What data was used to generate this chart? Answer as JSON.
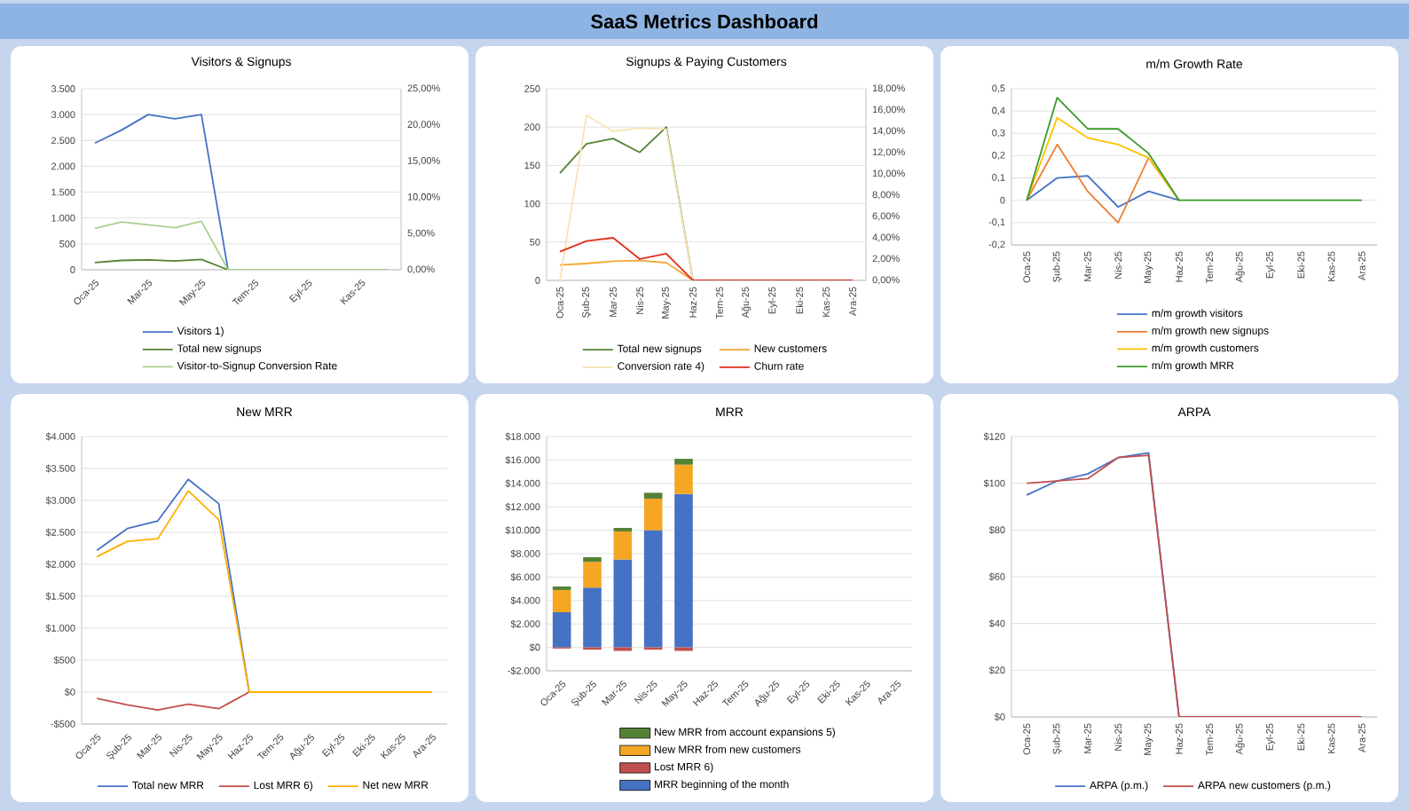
{
  "chart_data": [
    {
      "type": "other",
      "title": "SaaS Metrics Dashboard"
    },
    {
      "type": "line",
      "title": "Visitors & Signups",
      "categories": [
        "Oca-25",
        null,
        "Mar-25",
        null,
        "May-25",
        null,
        "Tem-25",
        null,
        "Eyl-25",
        null,
        "Kas-25",
        null
      ],
      "series": [
        {
          "name": "Visitors 1)",
          "color": "#4472c4",
          "values": [
            2450,
            2700,
            3000,
            2920,
            3000,
            0,
            null,
            null,
            null,
            null,
            null,
            null
          ]
        },
        {
          "name": "Total new signups",
          "color": "#548235",
          "values": [
            140,
            180,
            190,
            170,
            200,
            0,
            null,
            null,
            null,
            null,
            null,
            null
          ]
        },
        {
          "name": "Visitor-to-Signup Conversion Rate",
          "color": "#a9d18e",
          "axis": "y2",
          "values": [
            5.7,
            6.6,
            6.2,
            5.8,
            6.7,
            0,
            0,
            0,
            0,
            0,
            0,
            0
          ]
        }
      ],
      "ylim": [
        0,
        3500
      ],
      "yticks": [
        0,
        500,
        {
          "value": 1000,
          "label": "1.000"
        },
        {
          "value": 1500,
          "label": "1.500"
        },
        {
          "value": 2000,
          "label": "2.000"
        },
        {
          "value": 2500,
          "label": "2.500"
        },
        {
          "value": 3000,
          "label": "3.000"
        },
        {
          "value": 3500,
          "label": "3.500"
        }
      ],
      "y2lim": [
        0,
        25
      ],
      "y2ticks": [
        {
          "value": 0,
          "label": "0,00%"
        },
        {
          "value": 5,
          "label": "5,00%"
        },
        {
          "value": 10,
          "label": "10,00%"
        },
        {
          "value": 15,
          "label": "15,00%"
        },
        {
          "value": 20,
          "label": "20,00%"
        },
        {
          "value": 25,
          "label": "25,00%"
        }
      ],
      "grid": "y",
      "legend": "bottom"
    },
    {
      "type": "line",
      "title": "Signups & Paying Customers",
      "categories": [
        "Oca-25",
        "Şub-25",
        "Mar-25",
        "Nis-25",
        "May-25",
        "Haz-25",
        "Tem-25",
        "Ağu-25",
        "Eyl-25",
        "Eki-25",
        "Kas-25",
        "Ara-25"
      ],
      "series": [
        {
          "name": "Total new signups",
          "color": "#548235",
          "values": [
            140,
            178,
            185,
            167,
            200,
            0,
            null,
            null,
            null,
            null,
            null,
            null
          ]
        },
        {
          "name": "New customers",
          "color": "#f4a630",
          "values": [
            20,
            22,
            25,
            26,
            23,
            0,
            null,
            null,
            null,
            null,
            null,
            null
          ]
        },
        {
          "name": "Conversion rate 4)",
          "color": "#f8e3b4",
          "axis": "y2",
          "values": [
            0,
            15.5,
            14,
            14.3,
            14.2,
            0,
            null,
            null,
            null,
            null,
            null,
            null
          ]
        },
        {
          "name": "Churn rate",
          "color": "#e0301e",
          "axis": "y2",
          "values": [
            2.7,
            3.7,
            4.0,
            2.0,
            2.5,
            0,
            0,
            0,
            0,
            0,
            0,
            0
          ]
        }
      ],
      "ylim": [
        0,
        250
      ],
      "yticks": [
        0,
        50,
        100,
        150,
        200,
        250
      ],
      "y2lim": [
        0,
        18
      ],
      "y2ticks": [
        {
          "value": 0,
          "label": "0,00%"
        },
        {
          "value": 2,
          "label": "2,00%"
        },
        {
          "value": 4,
          "label": "4,00%"
        },
        {
          "value": 6,
          "label": "6,00%"
        },
        {
          "value": 8,
          "label": "8,00%"
        },
        {
          "value": 10,
          "label": "10,00%"
        },
        {
          "value": 12,
          "label": "12,00%"
        },
        {
          "value": 14,
          "label": "14,00%"
        },
        {
          "value": 16,
          "label": "16,00%"
        },
        {
          "value": 18,
          "label": "18,00%"
        }
      ],
      "grid": "y",
      "legend": "bottom"
    },
    {
      "type": "line",
      "title": "m/m Growth Rate",
      "categories": [
        "Oca-25",
        "Şub-25",
        "Mar-25",
        "Nis-25",
        "May-25",
        "Haz-25",
        "Tem-25",
        "Ağu-25",
        "Eyl-25",
        "Eki-25",
        "Kas-25",
        "Ara-25"
      ],
      "series": [
        {
          "name": "m/m growth visitors",
          "color": "#4472c4",
          "values": [
            0,
            0.1,
            0.11,
            -0.03,
            0.04,
            0,
            null,
            null,
            null,
            null,
            null,
            null
          ]
        },
        {
          "name": "m/m growth new signups",
          "color": "#ed7d31",
          "values": [
            0,
            0.25,
            0.04,
            -0.1,
            0.19,
            0,
            null,
            null,
            null,
            null,
            null,
            null
          ]
        },
        {
          "name": "m/m growth customers",
          "color": "#ffc000",
          "values": [
            0,
            0.37,
            0.28,
            0.25,
            0.19,
            0,
            null,
            null,
            null,
            null,
            null,
            null
          ]
        },
        {
          "name": "m/m growth MRR",
          "color": "#3a9a2a",
          "values": [
            0,
            0.46,
            0.32,
            0.32,
            0.21,
            0,
            0,
            0,
            0,
            0,
            0,
            0
          ]
        }
      ],
      "ylim": [
        -0.2,
        0.5
      ],
      "yticks": [
        {
          "value": -0.2,
          "label": "-0,2"
        },
        {
          "value": -0.1,
          "label": "-0,1"
        },
        0,
        {
          "value": 0.1,
          "label": "0,1"
        },
        {
          "value": 0.2,
          "label": "0,2"
        },
        {
          "value": 0.3,
          "label": "0,3"
        },
        {
          "value": 0.4,
          "label": "0,4"
        },
        {
          "value": 0.5,
          "label": "0,5"
        }
      ],
      "grid": "y",
      "legend": "bottom"
    },
    {
      "type": "line",
      "title": "New MRR",
      "categories": [
        "Oca-25",
        "Şub-25",
        "Mar-25",
        "Nis-25",
        "May-25",
        "Haz-25",
        "Tem-25",
        "Ağu-25",
        "Eyl-25",
        "Eki-25",
        "Kas-25",
        "Ara-25"
      ],
      "series": [
        {
          "name": "Total new MRR",
          "color": "#4472c4",
          "values": [
            2220,
            2560,
            2680,
            3330,
            2950,
            0,
            null,
            null,
            null,
            null,
            null,
            null
          ]
        },
        {
          "name": "Lost MRR 6)",
          "color": "#c0504d",
          "values": [
            -100,
            -200,
            -280,
            -190,
            -260,
            0,
            null,
            null,
            null,
            null,
            null,
            null
          ]
        },
        {
          "name": "Net new MRR",
          "color": "#ffb000",
          "values": [
            2120,
            2360,
            2400,
            3150,
            2700,
            0,
            0,
            0,
            0,
            0,
            0,
            0
          ]
        }
      ],
      "ylim": [
        -500,
        4000
      ],
      "yticks": [
        {
          "value": -500,
          "label": "-$500"
        },
        {
          "value": 0,
          "label": "$0"
        },
        {
          "value": 500,
          "label": "$500"
        },
        {
          "value": 1000,
          "label": "$1.000"
        },
        {
          "value": 1500,
          "label": "$1.500"
        },
        {
          "value": 2000,
          "label": "$2.000"
        },
        {
          "value": 2500,
          "label": "$2.500"
        },
        {
          "value": 3000,
          "label": "$3.000"
        },
        {
          "value": 3500,
          "label": "$3.500"
        },
        {
          "value": 4000,
          "label": "$4.000"
        }
      ],
      "grid": "y",
      "legend": "bottom"
    },
    {
      "type": "bar",
      "stacked": true,
      "title": "MRR",
      "categories": [
        "Oca-25",
        "Şub-25",
        "Mar-25",
        "Nis-25",
        "May-25",
        "Haz-25",
        "Tem-25",
        "Ağu-25",
        "Eyl-25",
        "Eki-25",
        "Kas-25",
        "Ara-25"
      ],
      "series": [
        {
          "name": "MRR beginning of the month",
          "color": "#4472c4",
          "values": [
            3000,
            5100,
            7500,
            10000,
            13100,
            null,
            null,
            null,
            null,
            null,
            null,
            null
          ]
        },
        {
          "name": "Lost MRR 6)",
          "color": "#c0504d",
          "values": [
            -100,
            -200,
            -300,
            -200,
            -300,
            null,
            null,
            null,
            null,
            null,
            null,
            null
          ]
        },
        {
          "name": "New MRR from new customers",
          "color": "#f5a623",
          "values": [
            1900,
            2200,
            2400,
            2700,
            2500,
            null,
            null,
            null,
            null,
            null,
            null,
            null
          ]
        },
        {
          "name": "New MRR from account expansions 5)",
          "color": "#548235",
          "values": [
            300,
            400,
            300,
            500,
            500,
            null,
            null,
            null,
            null,
            null,
            null,
            null
          ]
        }
      ],
      "ylim": [
        -2000,
        18000
      ],
      "yticks": [
        {
          "value": -2000,
          "label": "-$2.000"
        },
        {
          "value": 0,
          "label": "$0"
        },
        {
          "value": 2000,
          "label": "$2.000"
        },
        {
          "value": 4000,
          "label": "$4.000"
        },
        {
          "value": 6000,
          "label": "$6.000"
        },
        {
          "value": 8000,
          "label": "$8.000"
        },
        {
          "value": 10000,
          "label": "$10.000"
        },
        {
          "value": 12000,
          "label": "$12.000"
        },
        {
          "value": 14000,
          "label": "$14.000"
        },
        {
          "value": 16000,
          "label": "$16.000"
        },
        {
          "value": 18000,
          "label": "$18.000"
        }
      ],
      "grid": "y",
      "legend": "bottom"
    },
    {
      "type": "line",
      "title": "ARPA",
      "categories": [
        "Oca-25",
        "Şub-25",
        "Mar-25",
        "Nis-25",
        "May-25",
        "Haz-25",
        "Tem-25",
        "Ağu-25",
        "Eyl-25",
        "Eki-25",
        "Kas-25",
        "Ara-25"
      ],
      "series": [
        {
          "name": "ARPA (p.m.)",
          "color": "#4472c4",
          "values": [
            95,
            101,
            104,
            111,
            113,
            0,
            null,
            null,
            null,
            null,
            null,
            null
          ]
        },
        {
          "name": "ARPA new customers (p.m.)",
          "color": "#c0504d",
          "values": [
            100,
            101,
            102,
            111,
            112,
            0,
            0,
            0,
            0,
            0,
            0,
            0
          ]
        }
      ],
      "ylim": [
        0,
        120
      ],
      "yticks": [
        {
          "value": 0,
          "label": "$0"
        },
        {
          "value": 20,
          "label": "$20"
        },
        {
          "value": 40,
          "label": "$40"
        },
        {
          "value": 60,
          "label": "$60"
        },
        {
          "value": 80,
          "label": "$80"
        },
        {
          "value": 100,
          "label": "$100"
        },
        {
          "value": 120,
          "label": "$120"
        }
      ],
      "grid": "y",
      "legend": "bottom"
    }
  ]
}
